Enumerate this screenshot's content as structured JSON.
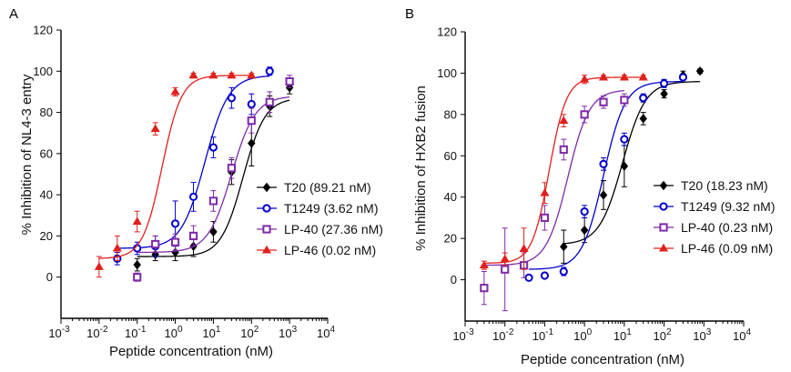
{
  "chart_data": [
    {
      "type": "line",
      "panel_label": "A",
      "xlabel": "Peptide concentration (nM)",
      "ylabel": "% Inhibition of NL4-3 entry",
      "xscale": "log",
      "xlim": [
        0.001,
        10000
      ],
      "ylim": [
        -20,
        120
      ],
      "xticks": [
        {
          "v": 0.001,
          "b": "10",
          "e": "-3"
        },
        {
          "v": 0.01,
          "b": "10",
          "e": "-2"
        },
        {
          "v": 0.1,
          "b": "10",
          "e": "-1"
        },
        {
          "v": 1,
          "b": "10",
          "e": "0"
        },
        {
          "v": 10,
          "b": "10",
          "e": "1"
        },
        {
          "v": 100,
          "b": "10",
          "e": "2"
        },
        {
          "v": 1000,
          "b": "10",
          "e": "3"
        },
        {
          "v": 10000,
          "b": "10",
          "e": "4"
        }
      ],
      "yticks": [
        0,
        20,
        40,
        60,
        80,
        100,
        120
      ],
      "legend_position": "right",
      "series": [
        {
          "name": "T20 (89.21 nM)",
          "color": "#000000",
          "marker": "diamond",
          "x": [
            0.1,
            0.3,
            1,
            3,
            10,
            30,
            100,
            300,
            1000
          ],
          "y": [
            6,
            11,
            12,
            15,
            22,
            51,
            65,
            83,
            92
          ],
          "err": [
            3,
            3,
            4,
            5,
            5,
            6,
            11,
            5,
            3
          ],
          "fit": {
            "bottom": 10,
            "top": 87,
            "ec50": 60,
            "hill": 1.5
          }
        },
        {
          "name": "T1249 (3.62 nM)",
          "color": "#0000cc",
          "marker": "circle",
          "x": [
            0.03,
            0.1,
            0.3,
            1,
            3,
            10,
            30,
            100,
            300
          ],
          "y": [
            9,
            14,
            15,
            26,
            39,
            63,
            87,
            84,
            100
          ],
          "err": [
            3,
            3,
            5,
            11,
            7,
            5,
            5,
            5,
            2
          ],
          "fit": {
            "bottom": 14,
            "top": 98,
            "ec50": 6,
            "hill": 1.4
          }
        },
        {
          "name": "LP-40 (27.36 nM)",
          "color": "#7f2aa8",
          "marker": "square",
          "x": [
            0.1,
            0.3,
            1,
            3,
            10,
            30,
            100,
            300,
            1000
          ],
          "y": [
            0,
            16,
            17,
            20,
            37,
            53,
            76,
            85,
            95
          ],
          "err": [
            2,
            4,
            4,
            5,
            5,
            5,
            6,
            5,
            3
          ],
          "fit": {
            "bottom": 12,
            "top": 88,
            "ec50": 30,
            "hill": 1.4
          }
        },
        {
          "name": "LP-46 (0.02 nM)",
          "color": "#e0201c",
          "marker": "triangle",
          "x": [
            0.01,
            0.03,
            0.1,
            0.3,
            1,
            3,
            10,
            30,
            100
          ],
          "y": [
            5,
            14,
            27,
            72,
            90,
            98,
            98,
            98,
            98
          ],
          "err": [
            5,
            6,
            5,
            3,
            2,
            1,
            1,
            1,
            1
          ],
          "fit": {
            "bottom": 9,
            "top": 98,
            "ec50": 0.45,
            "hill": 1.7
          }
        }
      ]
    },
    {
      "type": "line",
      "panel_label": "B",
      "xlabel": "Peptide concentration (nM)",
      "ylabel": "% Inhibition of HXB2 fusion",
      "xscale": "log",
      "xlim": [
        0.001,
        10000
      ],
      "ylim": [
        -20,
        120
      ],
      "xticks": [
        {
          "v": 0.001,
          "b": "10",
          "e": "-3"
        },
        {
          "v": 0.01,
          "b": "10",
          "e": "-2"
        },
        {
          "v": 0.1,
          "b": "10",
          "e": "-1"
        },
        {
          "v": 1,
          "b": "10",
          "e": "0"
        },
        {
          "v": 10,
          "b": "10",
          "e": "1"
        },
        {
          "v": 100,
          "b": "10",
          "e": "2"
        },
        {
          "v": 1000,
          "b": "10",
          "e": "3"
        },
        {
          "v": 10000,
          "b": "10",
          "e": "4"
        }
      ],
      "yticks": [
        0,
        20,
        40,
        60,
        80,
        100,
        120
      ],
      "legend_position": "right",
      "series": [
        {
          "name": "T20 (18.23 nM)",
          "color": "#000000",
          "marker": "diamond",
          "x": [
            0.3,
            1,
            3,
            10,
            30,
            100,
            300,
            800
          ],
          "y": [
            16,
            24,
            41,
            55,
            78,
            90,
            99,
            101
          ],
          "err": [
            8,
            6,
            7,
            10,
            3,
            2,
            2,
            1
          ],
          "fit": {
            "bottom": 17,
            "top": 96,
            "ec50": 9,
            "hill": 1.5
          }
        },
        {
          "name": "T1249 (9.32 nM)",
          "color": "#0000cc",
          "marker": "circle",
          "x": [
            0.04,
            0.1,
            0.3,
            1,
            3,
            10,
            30,
            100,
            300
          ],
          "y": [
            1,
            2,
            4,
            33,
            56,
            68,
            88,
            95,
            98
          ],
          "err": [
            1,
            1,
            2,
            3,
            3,
            3,
            2,
            2,
            1
          ],
          "fit": {
            "bottom": 5,
            "top": 96,
            "ec50": 3,
            "hill": 1.6
          }
        },
        {
          "name": "LP-40 (0.23 nM)",
          "color": "#7f2aa8",
          "marker": "square",
          "x": [
            0.003,
            0.01,
            0.03,
            0.1,
            0.3,
            1,
            3,
            10
          ],
          "y": [
            -4,
            5,
            7,
            30,
            63,
            80,
            86,
            87
          ],
          "err": [
            8,
            20,
            6,
            6,
            5,
            4,
            3,
            3
          ],
          "fit": {
            "bottom": 7,
            "top": 92,
            "ec50": 0.38,
            "hill": 1.6
          }
        },
        {
          "name": "LP-46 (0.09 nM)",
          "color": "#e0201c",
          "marker": "triangle",
          "x": [
            0.003,
            0.01,
            0.03,
            0.1,
            0.3,
            1,
            3,
            10,
            30
          ],
          "y": [
            7,
            10,
            15,
            42,
            77,
            97,
            98,
            98,
            98
          ],
          "err": [
            2,
            3,
            10,
            5,
            3,
            2,
            1,
            1,
            1
          ],
          "fit": {
            "bottom": 8,
            "top": 98,
            "ec50": 0.13,
            "hill": 2
          }
        }
      ]
    }
  ]
}
